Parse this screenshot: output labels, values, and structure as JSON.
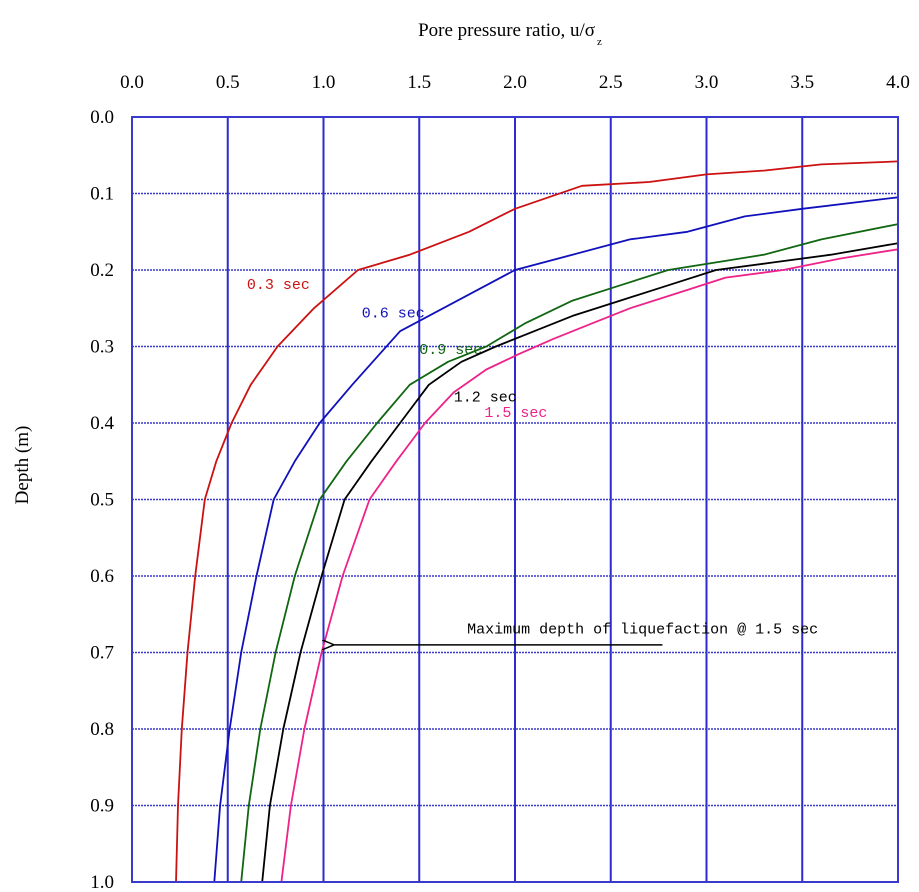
{
  "chart_data": {
    "type": "line",
    "title": "Pore pressure ratio, u/σ",
    "title_subscript": "z",
    "xlabel": "",
    "ylabel": "Depth (m)",
    "xlim": [
      0.0,
      4.0
    ],
    "ylim": [
      0.0,
      1.0
    ],
    "y_inverted": true,
    "x_axis_position": "top",
    "grid": true,
    "x_ticks": [
      "0.0",
      "0.5",
      "1.0",
      "1.5",
      "2.0",
      "2.5",
      "3.0",
      "3.5",
      "4.0"
    ],
    "y_ticks": [
      "0.0",
      "0.1",
      "0.2",
      "0.3",
      "0.4",
      "0.5",
      "0.6",
      "0.7",
      "0.8",
      "0.9",
      "1.0"
    ],
    "colors": {
      "vertical_grid": "#2b2bd0",
      "horizontal_grid": "#3a3acc",
      "frame": "#3a3acc"
    },
    "series": [
      {
        "name": "0.3 sec",
        "color": "#cc1111",
        "x": [
          0.23,
          0.24,
          0.26,
          0.29,
          0.33,
          0.38,
          0.44,
          0.52,
          0.62,
          0.76,
          0.95,
          1.18,
          1.45,
          1.76,
          2.0,
          2.35,
          2.7,
          3.0,
          3.3,
          3.6,
          4.0
        ],
        "y": [
          1.0,
          0.9,
          0.8,
          0.7,
          0.6,
          0.5,
          0.45,
          0.4,
          0.35,
          0.3,
          0.25,
          0.2,
          0.18,
          0.15,
          0.12,
          0.09,
          0.085,
          0.075,
          0.07,
          0.062,
          0.058
        ],
        "label_anchor": [
          0.6,
          0.225
        ]
      },
      {
        "name": "0.6 sec",
        "color": "#1111bb",
        "x": [
          0.43,
          0.46,
          0.51,
          0.57,
          0.65,
          0.74,
          0.85,
          0.98,
          1.15,
          1.4,
          1.7,
          2.0,
          2.3,
          2.6,
          2.9,
          3.2,
          3.5,
          4.0
        ],
        "y": [
          1.0,
          0.9,
          0.8,
          0.7,
          0.6,
          0.5,
          0.45,
          0.4,
          0.35,
          0.28,
          0.24,
          0.2,
          0.18,
          0.16,
          0.15,
          0.13,
          0.12,
          0.105
        ],
        "label_anchor": [
          1.2,
          0.262
        ]
      },
      {
        "name": "0.9 sec",
        "color": "#116611",
        "x": [
          0.57,
          0.61,
          0.67,
          0.75,
          0.85,
          0.98,
          1.12,
          1.28,
          1.45,
          1.65,
          1.85,
          2.05,
          2.3,
          2.55,
          2.8,
          3.05,
          3.3,
          3.6,
          4.0
        ],
        "y": [
          1.0,
          0.9,
          0.8,
          0.7,
          0.6,
          0.5,
          0.45,
          0.4,
          0.35,
          0.32,
          0.3,
          0.27,
          0.24,
          0.22,
          0.2,
          0.19,
          0.18,
          0.16,
          0.14
        ],
        "label_anchor": [
          1.5,
          0.31
        ]
      },
      {
        "name": "1.2 sec",
        "color": "#000000",
        "x": [
          0.68,
          0.72,
          0.79,
          0.88,
          0.99,
          1.11,
          1.25,
          1.4,
          1.55,
          1.72,
          1.9,
          2.1,
          2.3,
          2.55,
          2.8,
          3.05,
          3.35,
          3.65,
          4.0
        ],
        "y": [
          1.0,
          0.9,
          0.8,
          0.7,
          0.6,
          0.5,
          0.45,
          0.4,
          0.35,
          0.32,
          0.3,
          0.28,
          0.26,
          0.24,
          0.22,
          0.2,
          0.19,
          0.18,
          0.165
        ],
        "label_anchor": [
          1.68,
          0.372
        ]
      },
      {
        "name": "1.5 sec",
        "color": "#ee2288",
        "x": [
          0.78,
          0.83,
          0.9,
          0.99,
          1.1,
          1.24,
          1.38,
          1.53,
          1.68,
          1.85,
          2.02,
          2.2,
          2.4,
          2.6,
          2.85,
          3.1,
          3.4,
          3.7,
          4.0
        ],
        "y": [
          1.0,
          0.9,
          0.8,
          0.7,
          0.6,
          0.5,
          0.45,
          0.4,
          0.36,
          0.33,
          0.31,
          0.29,
          0.27,
          0.25,
          0.23,
          0.21,
          0.2,
          0.185,
          0.173
        ],
        "label_anchor": [
          1.84,
          0.392
        ]
      }
    ],
    "annotations": [
      {
        "text": "Maximum depth of liquefaction @ 1.5 sec",
        "text_anchor": [
          1.75,
          0.675
        ],
        "arrow_from": [
          2.77,
          0.69
        ],
        "arrow_to": [
          1.05,
          0.69
        ]
      }
    ]
  }
}
